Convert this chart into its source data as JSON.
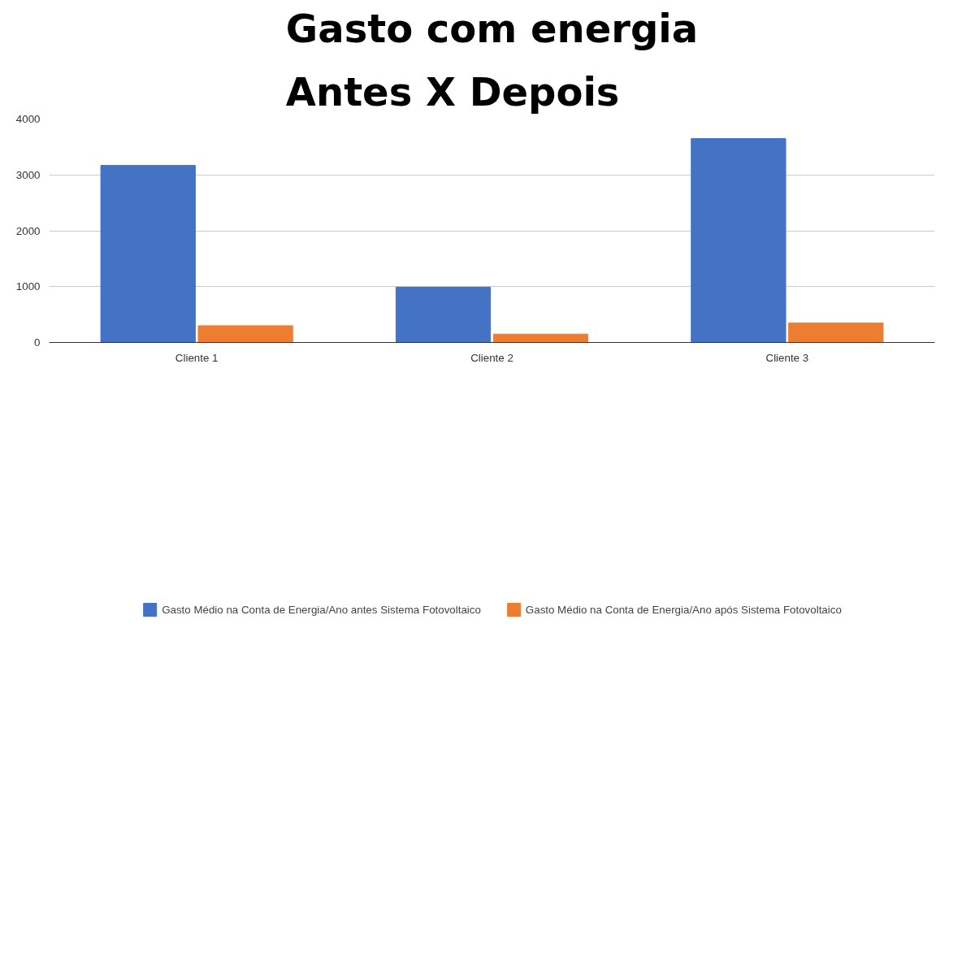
{
  "chart_data": {
    "type": "bar",
    "title": "Gasto com energia\nAntes X Depois",
    "categories": [
      "Cliente 1",
      "Cliente 2",
      "Cliente 3"
    ],
    "series": [
      {
        "name": "Gasto Médio na Conta de Energia/Ano antes Sistema Fotovoltaico",
        "color": "#4472c4",
        "values": [
          3170,
          990,
          3650
        ]
      },
      {
        "name": "Gasto Médio na Conta de Energia/Ano após Sistema Fotovoltaico",
        "color": "#ed7d31",
        "values": [
          300,
          150,
          350
        ]
      }
    ],
    "ylim": [
      0,
      4000
    ],
    "yticks": [
      0,
      1000,
      2000,
      3000,
      4000
    ],
    "grid": "y",
    "legend": "bottom"
  }
}
